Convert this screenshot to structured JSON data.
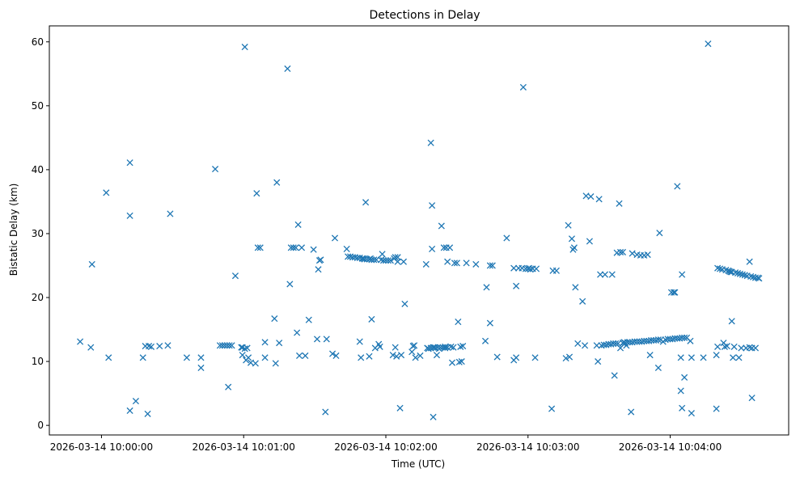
{
  "chart_data": {
    "type": "scatter",
    "title": "Detections in Delay",
    "xlabel": "Time (UTC)",
    "ylabel": "Bistatic Delay (km)",
    "marker": "x",
    "color": "#1f77b4",
    "xlim_seconds": [
      -22,
      290
    ],
    "ylim": [
      -1.5,
      62.5
    ],
    "x_ticks": [
      {
        "t": 0,
        "label": "2026-03-14 10:00:00"
      },
      {
        "t": 60,
        "label": "2026-03-14 10:01:00"
      },
      {
        "t": 120,
        "label": "2026-03-14 10:02:00"
      },
      {
        "t": 180,
        "label": "2026-03-14 10:03:00"
      },
      {
        "t": 240,
        "label": "2026-03-14 10:04:00"
      }
    ],
    "y_ticks": [
      0,
      10,
      20,
      30,
      40,
      50,
      60
    ],
    "x_unit": "seconds after 2026-03-14 10:00:00",
    "points": [
      [
        -9.0,
        13.1
      ],
      [
        -4.5,
        12.2
      ],
      [
        -4.0,
        25.2
      ],
      [
        2.0,
        36.4
      ],
      [
        3.0,
        10.6
      ],
      [
        12.0,
        2.3
      ],
      [
        12.0,
        41.1
      ],
      [
        12.0,
        32.8
      ],
      [
        14.5,
        3.8
      ],
      [
        17.5,
        10.6
      ],
      [
        18.5,
        12.4
      ],
      [
        19.5,
        1.8
      ],
      [
        20.0,
        12.4
      ],
      [
        21.0,
        12.3
      ],
      [
        24.5,
        12.4
      ],
      [
        28.0,
        12.5
      ],
      [
        29.0,
        33.1
      ],
      [
        36.0,
        10.6
      ],
      [
        42.0,
        9.0
      ],
      [
        42.0,
        10.6
      ],
      [
        48.0,
        40.1
      ],
      [
        50.0,
        12.5
      ],
      [
        51.0,
        12.5
      ],
      [
        52.0,
        12.5
      ],
      [
        53.0,
        12.5
      ],
      [
        54.0,
        12.5
      ],
      [
        55.0,
        12.5
      ],
      [
        53.5,
        6.0
      ],
      [
        56.5,
        23.4
      ],
      [
        59.0,
        12.2
      ],
      [
        59.5,
        11.0
      ],
      [
        60.5,
        12.0
      ],
      [
        61.0,
        10.2
      ],
      [
        61.5,
        12.1
      ],
      [
        62.0,
        10.6
      ],
      [
        63.0,
        9.8
      ],
      [
        60.5,
        59.2
      ],
      [
        65.0,
        9.7
      ],
      [
        65.5,
        36.3
      ],
      [
        66.0,
        27.8
      ],
      [
        67.0,
        27.8
      ],
      [
        69.0,
        10.6
      ],
      [
        69.0,
        13.0
      ],
      [
        73.0,
        16.7
      ],
      [
        73.5,
        9.7
      ],
      [
        74.0,
        38.0
      ],
      [
        75.0,
        12.9
      ],
      [
        78.5,
        55.8
      ],
      [
        79.5,
        22.1
      ],
      [
        80.0,
        27.8
      ],
      [
        81.0,
        27.8
      ],
      [
        82.0,
        27.8
      ],
      [
        82.5,
        14.5
      ],
      [
        83.0,
        31.4
      ],
      [
        83.5,
        10.9
      ],
      [
        84.5,
        27.8
      ],
      [
        86.0,
        10.9
      ],
      [
        87.5,
        16.5
      ],
      [
        89.5,
        27.5
      ],
      [
        91.0,
        13.5
      ],
      [
        91.5,
        24.4
      ],
      [
        92.0,
        25.8
      ],
      [
        92.5,
        25.9
      ],
      [
        94.5,
        2.1
      ],
      [
        95.0,
        13.5
      ],
      [
        97.5,
        11.2
      ],
      [
        98.5,
        29.3
      ],
      [
        99.0,
        10.9
      ],
      [
        103.5,
        27.6
      ],
      [
        104.0,
        26.4
      ],
      [
        105.0,
        26.4
      ],
      [
        106.0,
        26.3
      ],
      [
        107.0,
        26.3
      ],
      [
        108.0,
        26.2
      ],
      [
        109.0,
        26.2
      ],
      [
        109.0,
        13.1
      ],
      [
        109.5,
        10.6
      ],
      [
        110.0,
        26.1
      ],
      [
        111.0,
        26.0
      ],
      [
        111.5,
        34.9
      ],
      [
        112.0,
        26.0
      ],
      [
        113.0,
        10.8
      ],
      [
        113.0,
        26.0
      ],
      [
        114.0,
        25.9
      ],
      [
        114.0,
        16.6
      ],
      [
        115.0,
        25.9
      ],
      [
        115.5,
        12.1
      ],
      [
        116.0,
        25.9
      ],
      [
        117.0,
        12.7
      ],
      [
        117.5,
        12.3
      ],
      [
        118.0,
        25.9
      ],
      [
        118.5,
        26.8
      ],
      [
        119.0,
        25.8
      ],
      [
        120.0,
        25.8
      ],
      [
        121.0,
        25.8
      ],
      [
        122.0,
        25.8
      ],
      [
        123.0,
        11.0
      ],
      [
        123.5,
        26.1
      ],
      [
        124.0,
        12.2
      ],
      [
        124.0,
        26.3
      ],
      [
        124.5,
        10.8
      ],
      [
        125.0,
        26.3
      ],
      [
        125.0,
        25.6
      ],
      [
        126.0,
        2.7
      ],
      [
        126.5,
        11.0
      ],
      [
        127.5,
        25.6
      ],
      [
        128.0,
        19.0
      ],
      [
        131.0,
        11.5
      ],
      [
        131.5,
        12.4
      ],
      [
        132.0,
        12.5
      ],
      [
        132.5,
        10.6
      ],
      [
        134.5,
        10.9
      ],
      [
        137.0,
        25.2
      ],
      [
        137.5,
        12.1
      ],
      [
        138.0,
        12.0
      ],
      [
        139.0,
        12.1
      ],
      [
        139.0,
        44.2
      ],
      [
        139.5,
        34.4
      ],
      [
        139.5,
        27.6
      ],
      [
        140.0,
        12.2
      ],
      [
        140.0,
        1.3
      ],
      [
        140.5,
        12.2
      ],
      [
        141.0,
        12.1
      ],
      [
        141.5,
        11.0
      ],
      [
        142.0,
        12.2
      ],
      [
        143.0,
        12.2
      ],
      [
        143.5,
        31.2
      ],
      [
        144.0,
        12.2
      ],
      [
        144.5,
        27.8
      ],
      [
        145.0,
        12.3
      ],
      [
        145.5,
        27.8
      ],
      [
        146.0,
        12.2
      ],
      [
        146.0,
        25.6
      ],
      [
        147.0,
        27.8
      ],
      [
        147.5,
        12.3
      ],
      [
        148.0,
        9.8
      ],
      [
        148.5,
        12.2
      ],
      [
        149.0,
        25.4
      ],
      [
        150.0,
        25.4
      ],
      [
        150.5,
        16.2
      ],
      [
        151.0,
        9.9
      ],
      [
        151.5,
        12.3
      ],
      [
        152.0,
        10.0
      ],
      [
        152.5,
        12.4
      ],
      [
        154.0,
        25.4
      ],
      [
        158.0,
        25.2
      ],
      [
        162.0,
        13.2
      ],
      [
        162.5,
        21.6
      ],
      [
        164.0,
        16.0
      ],
      [
        164.0,
        25.0
      ],
      [
        165.0,
        25.0
      ],
      [
        167.0,
        10.7
      ],
      [
        171.0,
        29.3
      ],
      [
        174.0,
        10.2
      ],
      [
        174.0,
        24.6
      ],
      [
        175.0,
        21.8
      ],
      [
        175.0,
        10.6
      ],
      [
        176.0,
        24.6
      ],
      [
        177.5,
        24.6
      ],
      [
        178.0,
        52.9
      ],
      [
        179.0,
        24.5
      ],
      [
        180.0,
        24.5
      ],
      [
        181.0,
        24.4
      ],
      [
        182.0,
        24.5
      ],
      [
        183.0,
        10.6
      ],
      [
        183.5,
        24.5
      ],
      [
        190.0,
        2.6
      ],
      [
        190.5,
        24.2
      ],
      [
        192.0,
        24.2
      ],
      [
        196.0,
        10.5
      ],
      [
        197.0,
        31.3
      ],
      [
        197.5,
        10.7
      ],
      [
        198.5,
        29.2
      ],
      [
        199.0,
        27.5
      ],
      [
        199.5,
        27.8
      ],
      [
        200.0,
        21.6
      ],
      [
        201.0,
        12.8
      ],
      [
        203.0,
        19.4
      ],
      [
        204.0,
        12.5
      ],
      [
        204.5,
        35.9
      ],
      [
        206.0,
        28.8
      ],
      [
        206.5,
        35.8
      ],
      [
        209.0,
        12.5
      ],
      [
        209.5,
        10.0
      ],
      [
        210.0,
        35.4
      ],
      [
        210.5,
        23.6
      ],
      [
        211.0,
        12.5
      ],
      [
        212.0,
        12.6
      ],
      [
        212.5,
        23.6
      ],
      [
        213.0,
        12.6
      ],
      [
        214.0,
        12.7
      ],
      [
        215.0,
        12.7
      ],
      [
        215.5,
        23.6
      ],
      [
        216.0,
        12.8
      ],
      [
        216.5,
        7.8
      ],
      [
        217.0,
        12.8
      ],
      [
        217.5,
        27.0
      ],
      [
        218.0,
        12.8
      ],
      [
        218.5,
        34.7
      ],
      [
        219.0,
        12.1
      ],
      [
        219.0,
        27.1
      ],
      [
        220.0,
        12.9
      ],
      [
        220.0,
        27.1
      ],
      [
        221.0,
        12.9
      ],
      [
        221.5,
        12.5
      ],
      [
        222.0,
        13.0
      ],
      [
        223.0,
        13.0
      ],
      [
        223.5,
        2.1
      ],
      [
        224.0,
        26.9
      ],
      [
        224.0,
        13.0
      ],
      [
        225.0,
        13.1
      ],
      [
        226.0,
        26.7
      ],
      [
        226.0,
        13.1
      ],
      [
        227.0,
        13.1
      ],
      [
        227.5,
        26.6
      ],
      [
        228.0,
        13.1
      ],
      [
        229.0,
        26.6
      ],
      [
        229.0,
        13.2
      ],
      [
        230.0,
        13.2
      ],
      [
        230.5,
        26.7
      ],
      [
        231.0,
        13.2
      ],
      [
        231.5,
        11.0
      ],
      [
        232.0,
        13.3
      ],
      [
        233.0,
        13.3
      ],
      [
        234.0,
        13.3
      ],
      [
        235.0,
        9.0
      ],
      [
        235.0,
        13.4
      ],
      [
        235.5,
        30.1
      ],
      [
        236.0,
        13.4
      ],
      [
        237.0,
        13.1
      ],
      [
        238.0,
        13.4
      ],
      [
        239.0,
        13.5
      ],
      [
        240.0,
        13.5
      ],
      [
        240.5,
        20.8
      ],
      [
        241.0,
        13.5
      ],
      [
        241.5,
        20.8
      ],
      [
        242.0,
        13.6
      ],
      [
        242.0,
        20.8
      ],
      [
        243.0,
        13.6
      ],
      [
        243.0,
        37.4
      ],
      [
        244.0,
        13.6
      ],
      [
        244.5,
        10.6
      ],
      [
        244.5,
        5.4
      ],
      [
        245.0,
        13.7
      ],
      [
        245.0,
        2.7
      ],
      [
        245.0,
        23.6
      ],
      [
        246.0,
        13.7
      ],
      [
        246.0,
        7.5
      ],
      [
        247.0,
        13.7
      ],
      [
        248.5,
        13.2
      ],
      [
        249.0,
        1.9
      ],
      [
        249.0,
        10.6
      ],
      [
        254.0,
        10.6
      ],
      [
        256.0,
        59.7
      ],
      [
        259.5,
        2.6
      ],
      [
        259.5,
        11.0
      ],
      [
        260.0,
        12.3
      ],
      [
        260.0,
        24.6
      ],
      [
        261.0,
        24.5
      ],
      [
        262.0,
        24.4
      ],
      [
        262.5,
        12.9
      ],
      [
        263.0,
        12.3
      ],
      [
        263.5,
        24.3
      ],
      [
        264.0,
        12.4
      ],
      [
        264.5,
        24.2
      ],
      [
        265.0,
        24.1
      ],
      [
        266.0,
        24.0
      ],
      [
        266.0,
        16.3
      ],
      [
        266.5,
        10.6
      ],
      [
        267.0,
        12.3
      ],
      [
        267.5,
        23.9
      ],
      [
        268.5,
        23.8
      ],
      [
        269.0,
        10.6
      ],
      [
        269.5,
        23.7
      ],
      [
        270.0,
        12.1
      ],
      [
        270.5,
        23.6
      ],
      [
        271.5,
        23.5
      ],
      [
        272.0,
        12.1
      ],
      [
        272.5,
        23.4
      ],
      [
        273.5,
        25.6
      ],
      [
        273.5,
        12.2
      ],
      [
        274.0,
        23.3
      ],
      [
        274.5,
        12.1
      ],
      [
        274.5,
        4.3
      ],
      [
        275.0,
        23.2
      ],
      [
        276.0,
        12.1
      ],
      [
        276.0,
        23.1
      ],
      [
        277.0,
        23.1
      ],
      [
        277.5,
        23.0
      ],
      [
        145.0,
        12.1
      ],
      [
        142.5,
        12.0
      ],
      [
        59.5,
        12.2
      ],
      [
        113.5,
        26.1
      ],
      [
        110.5,
        26.1
      ],
      [
        180.5,
        24.6
      ],
      [
        220.5,
        13.0
      ],
      [
        265.5,
        24.0
      ]
    ]
  }
}
